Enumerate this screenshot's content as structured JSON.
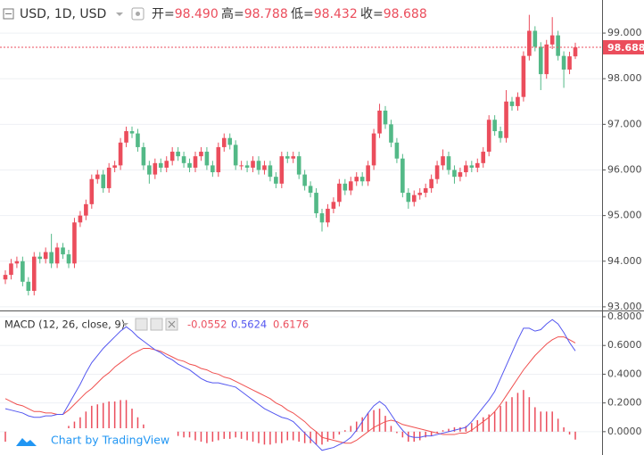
{
  "header": {
    "symbol": "USD, 1D, USD",
    "ohlc": [
      {
        "label": "开=",
        "value": "98.490"
      },
      {
        "label": "高=",
        "value": "98.788"
      },
      {
        "label": "低=",
        "value": "98.432"
      },
      {
        "label": "收=",
        "value": "98.688"
      }
    ]
  },
  "branding": "Chart by TradingView",
  "chart_data": [
    {
      "type": "candlestick",
      "up_color": "#eb4d5c",
      "down_color": "#53b987",
      "last_price_color": "#eb4d5c",
      "ylim": [
        92.92,
        99.725
      ],
      "yticks": [
        {
          "value": 99,
          "label": "99.000"
        },
        {
          "value": 98,
          "label": "98.000"
        },
        {
          "value": 97,
          "label": "97.000"
        },
        {
          "value": 96,
          "label": "96.000"
        },
        {
          "value": 95,
          "label": "95.000"
        },
        {
          "value": 94,
          "label": "94.000"
        },
        {
          "value": 93,
          "label": "93.000"
        }
      ],
      "open": [
        93.6,
        93.7,
        93.95,
        94.0,
        93.55,
        93.35,
        94.1,
        94.05,
        94.2,
        93.95,
        94.3,
        94.15,
        93.95,
        94.85,
        95.0,
        95.25,
        95.8,
        95.9,
        95.6,
        96.05,
        96.1,
        96.6,
        96.85,
        96.8,
        96.5,
        96.1,
        95.9,
        96.15,
        96.05,
        96.2,
        96.4,
        96.3,
        96.15,
        96.05,
        96.3,
        96.4,
        96.1,
        95.95,
        96.5,
        96.7,
        96.55,
        96.1,
        96.1,
        96.05,
        96.2,
        96.0,
        96.1,
        95.85,
        95.7,
        96.3,
        96.25,
        96.3,
        95.9,
        95.65,
        95.5,
        95.05,
        94.85,
        95.15,
        95.3,
        95.7,
        95.55,
        95.75,
        95.85,
        95.75,
        96.1,
        96.8,
        97.3,
        97.0,
        96.6,
        96.25,
        95.5,
        95.3,
        95.45,
        95.5,
        95.6,
        95.8,
        96.1,
        96.3,
        96.0,
        95.85,
        95.95,
        96.1,
        96.05,
        96.15,
        96.4,
        97.1,
        96.85,
        96.7,
        97.5,
        97.4,
        97.6,
        98.5,
        99.05,
        98.7,
        98.1,
        98.75,
        98.95,
        98.5,
        98.2,
        98.49
      ],
      "high": [
        93.8,
        94.05,
        94.1,
        94.1,
        93.65,
        94.2,
        94.2,
        94.3,
        94.6,
        94.4,
        94.4,
        94.25,
        94.95,
        95.1,
        95.35,
        95.9,
        96.0,
        96.0,
        96.15,
        96.2,
        96.7,
        96.95,
        96.95,
        96.9,
        96.6,
        96.2,
        96.25,
        96.25,
        96.3,
        96.5,
        96.5,
        96.4,
        96.25,
        96.4,
        96.5,
        96.5,
        96.2,
        96.6,
        96.8,
        96.8,
        96.65,
        96.2,
        96.2,
        96.3,
        96.3,
        96.2,
        96.2,
        95.95,
        96.4,
        96.4,
        96.4,
        96.4,
        96.0,
        95.75,
        95.6,
        95.15,
        95.25,
        95.4,
        95.8,
        95.8,
        95.85,
        95.95,
        95.95,
        96.2,
        96.9,
        97.45,
        97.4,
        97.1,
        96.7,
        96.35,
        95.6,
        95.55,
        95.6,
        95.7,
        95.9,
        96.2,
        96.45,
        96.4,
        96.1,
        96.05,
        96.2,
        96.2,
        96.25,
        96.5,
        97.2,
        97.2,
        96.95,
        97.75,
        97.6,
        97.7,
        98.6,
        99.4,
        99.15,
        98.8,
        98.85,
        99.35,
        99.05,
        98.6,
        98.59,
        98.788
      ],
      "low": [
        93.5,
        93.6,
        93.85,
        93.45,
        93.25,
        93.25,
        93.95,
        93.95,
        93.85,
        93.85,
        94.05,
        93.85,
        93.85,
        94.75,
        94.9,
        95.15,
        95.7,
        95.5,
        95.5,
        95.95,
        96.0,
        96.5,
        96.7,
        96.4,
        96.0,
        95.7,
        95.8,
        95.95,
        95.95,
        96.1,
        96.2,
        96.05,
        95.95,
        95.95,
        96.2,
        96.0,
        95.85,
        95.85,
        96.4,
        96.45,
        96.0,
        96.0,
        95.95,
        95.95,
        95.9,
        95.9,
        95.75,
        95.6,
        95.6,
        96.15,
        96.15,
        95.8,
        95.55,
        95.4,
        94.95,
        94.65,
        94.75,
        95.05,
        95.2,
        95.45,
        95.45,
        95.65,
        95.65,
        95.65,
        96.0,
        96.7,
        96.9,
        96.5,
        96.15,
        95.4,
        95.15,
        95.2,
        95.35,
        95.4,
        95.5,
        95.7,
        96.0,
        95.9,
        95.7,
        95.75,
        95.85,
        95.95,
        95.95,
        96.05,
        96.3,
        96.75,
        96.6,
        96.6,
        97.3,
        97.3,
        97.5,
        98.4,
        98.6,
        97.75,
        98.0,
        98.65,
        98.4,
        97.8,
        98.1,
        98.432
      ],
      "close": [
        93.7,
        93.95,
        94.0,
        93.55,
        93.35,
        94.1,
        94.05,
        94.2,
        93.95,
        94.3,
        94.15,
        93.95,
        94.85,
        95.0,
        95.25,
        95.8,
        95.9,
        95.6,
        96.05,
        96.1,
        96.6,
        96.85,
        96.8,
        96.5,
        96.1,
        95.9,
        96.15,
        96.05,
        96.2,
        96.4,
        96.3,
        96.15,
        96.05,
        96.3,
        96.4,
        96.1,
        95.95,
        96.5,
        96.7,
        96.55,
        96.1,
        96.1,
        96.05,
        96.2,
        96.0,
        96.1,
        95.85,
        95.7,
        96.3,
        96.25,
        96.3,
        95.9,
        95.65,
        95.5,
        95.05,
        94.85,
        95.15,
        95.3,
        95.7,
        95.55,
        95.75,
        95.85,
        95.75,
        96.1,
        96.8,
        97.3,
        97.0,
        96.6,
        96.25,
        95.5,
        95.3,
        95.45,
        95.5,
        95.6,
        95.8,
        96.1,
        96.3,
        96.0,
        95.85,
        95.95,
        96.1,
        96.05,
        96.15,
        96.4,
        97.1,
        96.85,
        96.7,
        97.5,
        97.4,
        97.6,
        98.5,
        99.05,
        98.7,
        98.1,
        98.75,
        98.95,
        98.5,
        98.2,
        98.49,
        98.688
      ]
    },
    {
      "type": "macd",
      "title": "MACD (12, 26, close, 9)",
      "ylim": [
        -0.1625,
        0.8375
      ],
      "yticks": [
        {
          "value": 0.8,
          "label": "0.8000"
        },
        {
          "value": 0.6,
          "label": "0.6000"
        },
        {
          "value": 0.4,
          "label": "0.4000"
        },
        {
          "value": 0.2,
          "label": "0.2000"
        },
        {
          "value": 0,
          "label": "0.0000"
        }
      ],
      "histogram": {
        "color": "#eb4d5c",
        "values": [
          -0.07,
          -0.06,
          -0.05,
          -0.05,
          -0.05,
          -0.04,
          -0.04,
          -0.02,
          -0.02,
          0,
          0,
          0.04,
          0.07,
          0.1,
          0.14,
          0.18,
          0.19,
          0.2,
          0.21,
          0.21,
          0.22,
          0.22,
          0.16,
          0.1,
          0.05,
          0.02,
          0,
          -0.01,
          -0.02,
          -0.02,
          -0.03,
          -0.04,
          -0.04,
          -0.06,
          -0.07,
          -0.08,
          -0.07,
          -0.06,
          -0.05,
          -0.05,
          -0.04,
          -0.05,
          -0.06,
          -0.07,
          -0.08,
          -0.09,
          -0.09,
          -0.08,
          -0.08,
          -0.06,
          -0.06,
          -0.07,
          -0.08,
          -0.08,
          -0.09,
          -0.09,
          -0.07,
          -0.05,
          -0.02,
          0.01,
          0.04,
          0.07,
          0.1,
          0.13,
          0.15,
          0.16,
          0.11,
          0.04,
          -0.01,
          -0.04,
          -0.07,
          -0.07,
          -0.06,
          -0.04,
          -0.03,
          -0.01,
          0.01,
          0.02,
          0.03,
          0.03,
          0.04,
          0.06,
          0.08,
          0.1,
          0.12,
          0.14,
          0.18,
          0.21,
          0.24,
          0.27,
          0.29,
          0.24,
          0.17,
          0.14,
          0.14,
          0.14,
          0.09,
          0.03,
          -0.02,
          -0.0552
        ]
      },
      "macd": {
        "color": "#5457f0",
        "values": [
          0.16,
          0.15,
          0.14,
          0.13,
          0.11,
          0.1,
          0.1,
          0.11,
          0.11,
          0.12,
          0.12,
          0.19,
          0.26,
          0.33,
          0.41,
          0.48,
          0.53,
          0.58,
          0.62,
          0.66,
          0.7,
          0.73,
          0.7,
          0.66,
          0.63,
          0.6,
          0.57,
          0.55,
          0.52,
          0.5,
          0.47,
          0.45,
          0.43,
          0.4,
          0.37,
          0.35,
          0.34,
          0.34,
          0.33,
          0.32,
          0.31,
          0.28,
          0.25,
          0.22,
          0.19,
          0.16,
          0.14,
          0.12,
          0.1,
          0.09,
          0.07,
          0.03,
          -0.01,
          -0.05,
          -0.09,
          -0.13,
          -0.12,
          -0.11,
          -0.09,
          -0.07,
          -0.04,
          0.01,
          0.07,
          0.13,
          0.18,
          0.21,
          0.18,
          0.12,
          0.06,
          0.01,
          -0.03,
          -0.04,
          -0.04,
          -0.03,
          -0.03,
          -0.02,
          -0.01,
          0,
          0.01,
          0.02,
          0.03,
          0.07,
          0.12,
          0.17,
          0.22,
          0.28,
          0.37,
          0.46,
          0.55,
          0.64,
          0.72,
          0.72,
          0.7,
          0.71,
          0.75,
          0.78,
          0.75,
          0.69,
          0.62,
          0.5624
        ]
      },
      "signal": {
        "color": "#f0504f",
        "values": [
          0.23,
          0.21,
          0.19,
          0.18,
          0.16,
          0.14,
          0.14,
          0.13,
          0.13,
          0.12,
          0.12,
          0.15,
          0.19,
          0.23,
          0.27,
          0.3,
          0.34,
          0.38,
          0.41,
          0.45,
          0.48,
          0.51,
          0.54,
          0.56,
          0.58,
          0.58,
          0.57,
          0.56,
          0.54,
          0.52,
          0.5,
          0.49,
          0.47,
          0.46,
          0.44,
          0.43,
          0.41,
          0.4,
          0.38,
          0.37,
          0.35,
          0.33,
          0.31,
          0.29,
          0.27,
          0.25,
          0.23,
          0.2,
          0.18,
          0.15,
          0.13,
          0.1,
          0.07,
          0.03,
          0,
          -0.04,
          -0.05,
          -0.06,
          -0.07,
          -0.08,
          -0.08,
          -0.06,
          -0.03,
          0,
          0.03,
          0.05,
          0.07,
          0.08,
          0.07,
          0.05,
          0.04,
          0.03,
          0.02,
          0.01,
          0,
          -0.01,
          -0.02,
          -0.02,
          -0.02,
          -0.01,
          -0.01,
          0.01,
          0.04,
          0.07,
          0.1,
          0.14,
          0.19,
          0.25,
          0.31,
          0.37,
          0.43,
          0.48,
          0.53,
          0.57,
          0.61,
          0.64,
          0.66,
          0.66,
          0.64,
          0.6176
        ]
      }
    }
  ]
}
